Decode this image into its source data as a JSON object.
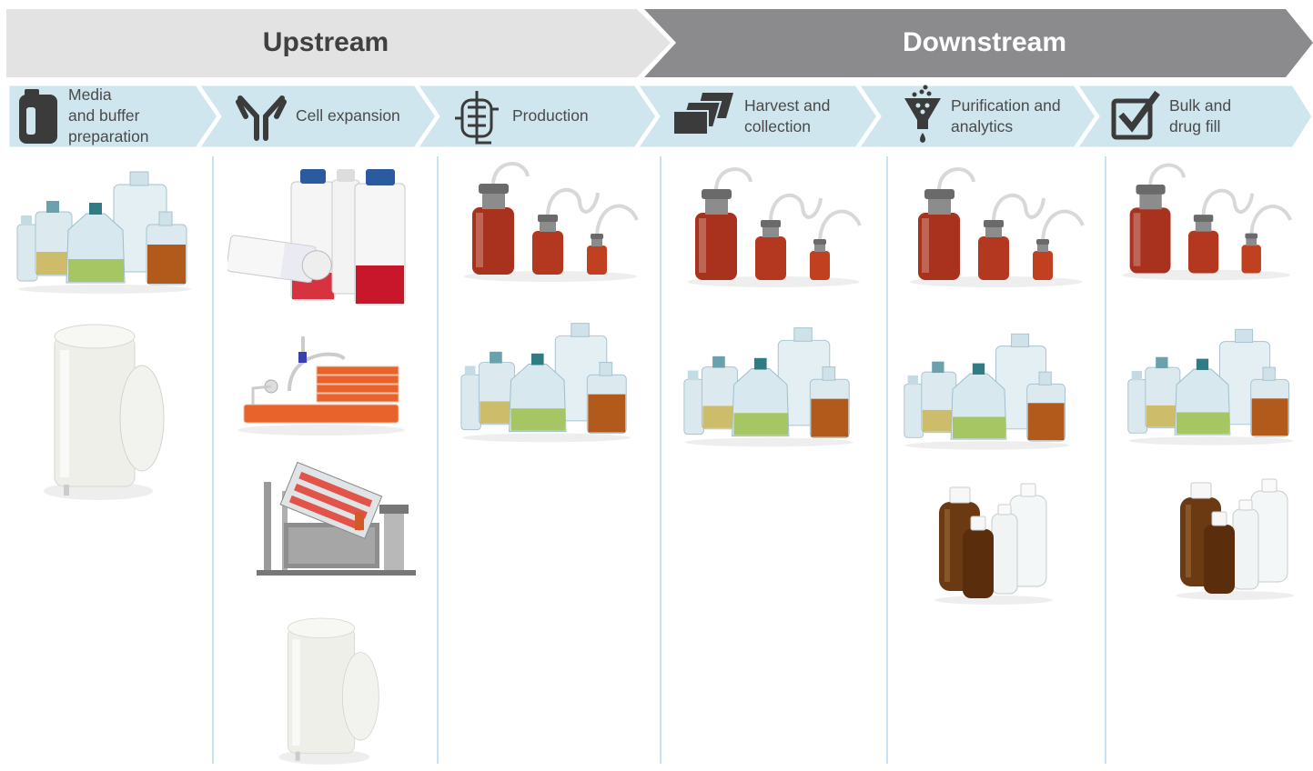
{
  "header": {
    "upstream": "Upstream",
    "downstream": "Downstream"
  },
  "steps": [
    {
      "lines": [
        "Media",
        "and buffer",
        "preparation"
      ]
    },
    {
      "lines": [
        "Cell expansion"
      ]
    },
    {
      "lines": [
        "Production"
      ]
    },
    {
      "lines": [
        "Harvest and",
        "collection"
      ]
    },
    {
      "lines": [
        "Purification and",
        "analytics"
      ]
    },
    {
      "lines": [
        "Bulk and",
        "drug fill"
      ]
    }
  ]
}
